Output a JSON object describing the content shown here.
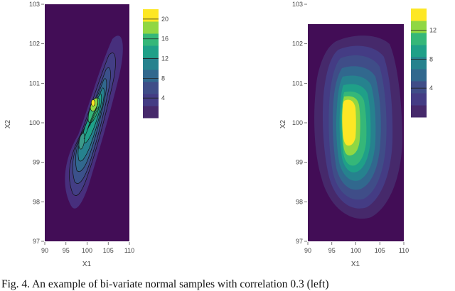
{
  "caption": "Fig. 4.   An example of bi-variate normal samples with correlation 0.3 (left)",
  "colors": {
    "background": "#420d56",
    "scale": [
      "#46296b",
      "#443c84",
      "#3f4d88",
      "#31688e",
      "#26828e",
      "#1fa088",
      "#35b779",
      "#90d743",
      "#fde725"
    ],
    "contour_line": "#111111"
  },
  "chart_data": [
    {
      "type": "contour",
      "panel": "left",
      "xlabel": "X1",
      "ylabel": "X2",
      "xlim": [
        90,
        110
      ],
      "ylim": [
        97,
        103
      ],
      "xticks": [
        "90",
        "95",
        "100",
        "105",
        "110"
      ],
      "yticks": [
        "97",
        "98",
        "99",
        "100",
        "101",
        "102",
        "103"
      ],
      "contour_lines": true,
      "colorbar": {
        "range": [
          0,
          22
        ],
        "ticks": [
          "4",
          "8",
          "12",
          "16",
          "20"
        ]
      },
      "modes": [
        {
          "x": 101,
          "y": 100.5,
          "peak": 21
        },
        {
          "x": 98.5,
          "y": 99.5,
          "peak": 8
        }
      ],
      "density_extent": {
        "x": [
          95.5,
          106.5
        ],
        "y": [
          98.0,
          102.5
        ]
      }
    },
    {
      "type": "contour",
      "panel": "right",
      "xlabel": "X1",
      "ylabel": "X2",
      "xlim": [
        90,
        110
      ],
      "ylim": [
        97,
        103
      ],
      "xticks": [
        "90",
        "95",
        "100",
        "105",
        "110"
      ],
      "yticks": [
        "97",
        "98",
        "99",
        "100",
        "101",
        "102",
        "103"
      ],
      "contour_lines": false,
      "colorbar": {
        "range": [
          0,
          15
        ],
        "ticks": [
          "4",
          "8",
          "12"
        ]
      },
      "modes": [
        {
          "x": 98,
          "y": 100,
          "peak": 15
        }
      ],
      "density_extent": {
        "x": [
          92,
          106
        ],
        "y": [
          97.5,
          102.3
        ]
      }
    }
  ]
}
